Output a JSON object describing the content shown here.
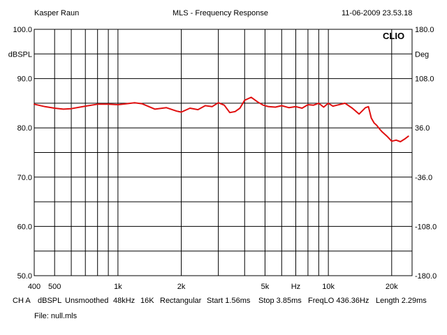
{
  "header": {
    "author": "Kasper Raun",
    "title": "MLS - Frequency Response",
    "timestamp": "11-06-2009 23.53.18"
  },
  "brand": "CLIO",
  "chart_data": {
    "type": "line",
    "title": "MLS - Frequency Response",
    "xscale": "log",
    "xlim": [
      400,
      25000
    ],
    "ylim": [
      50,
      100
    ],
    "y2lim": [
      -180,
      180
    ],
    "ylabel": "dBSPL",
    "y2label": "Deg",
    "grid": true,
    "x_ticks": [
      {
        "value": 400,
        "label": "400"
      },
      {
        "value": 500,
        "label": "500"
      },
      {
        "value": 1000,
        "label": "1k"
      },
      {
        "value": 2000,
        "label": "2k"
      },
      {
        "value": 5000,
        "label": "5k"
      },
      {
        "value": 10000,
        "label": "10k"
      },
      {
        "value": 20000,
        "label": "20k"
      }
    ],
    "x_unit_label": "Hz",
    "y_ticks": [
      {
        "value": 100,
        "label": "100.0"
      },
      {
        "value": 90,
        "label": "90.0"
      },
      {
        "value": 80,
        "label": "80.0"
      },
      {
        "value": 70,
        "label": "70.0"
      },
      {
        "value": 60,
        "label": "60.0"
      },
      {
        "value": 50,
        "label": "50.0"
      }
    ],
    "y2_ticks": [
      {
        "value": 180,
        "label": "180.0"
      },
      {
        "value": 108,
        "label": "108.0"
      },
      {
        "value": 36,
        "label": "36.0"
      },
      {
        "value": -36,
        "label": "-36.0"
      },
      {
        "value": -108,
        "label": "-108.0"
      },
      {
        "value": -180,
        "label": "-180.0"
      }
    ],
    "series": [
      {
        "color": "#e01010",
        "x": [
          400,
          450,
          500,
          550,
          600,
          700,
          800,
          900,
          1000,
          1100,
          1200,
          1300,
          1500,
          1700,
          1900,
          2000,
          2200,
          2400,
          2600,
          2800,
          3000,
          3200,
          3400,
          3600,
          3800,
          4000,
          4300,
          4600,
          4900,
          5200,
          5600,
          6000,
          6500,
          7000,
          7500,
          8000,
          8500,
          9000,
          9500,
          10000,
          10500,
          11000,
          12000,
          13000,
          14000,
          15000,
          15500,
          16000,
          16500,
          17000,
          17500,
          18000,
          19000,
          20000,
          21000,
          22000,
          23000,
          24000
        ],
        "values": [
          84.8,
          84.3,
          84.0,
          83.8,
          83.9,
          84.4,
          84.8,
          84.8,
          84.7,
          84.9,
          85.1,
          84.9,
          83.8,
          84.1,
          83.4,
          83.2,
          84.0,
          83.7,
          84.5,
          84.3,
          85.1,
          84.6,
          83.1,
          83.3,
          84.0,
          85.6,
          86.2,
          85.3,
          84.6,
          84.3,
          84.2,
          84.5,
          84.1,
          84.3,
          84.0,
          84.7,
          84.6,
          85.0,
          84.2,
          85.0,
          84.4,
          84.6,
          85.0,
          84.0,
          82.8,
          84.1,
          84.3,
          82.0,
          81.0,
          80.5,
          79.8,
          79.2,
          78.3,
          77.3,
          77.5,
          77.2,
          77.7,
          78.3
        ]
      }
    ]
  },
  "footer": {
    "channel": "CH A",
    "unit": "dBSPL",
    "smoothing": "Unsmoothed",
    "rate": "48kHz",
    "size": "16K",
    "window": "Rectangular",
    "start": "Start 1.56ms",
    "stop": "Stop 3.85ms",
    "freqlo": "FreqLO 436.36Hz",
    "length": "Length 2.29ms",
    "file": "File: null.mls"
  }
}
